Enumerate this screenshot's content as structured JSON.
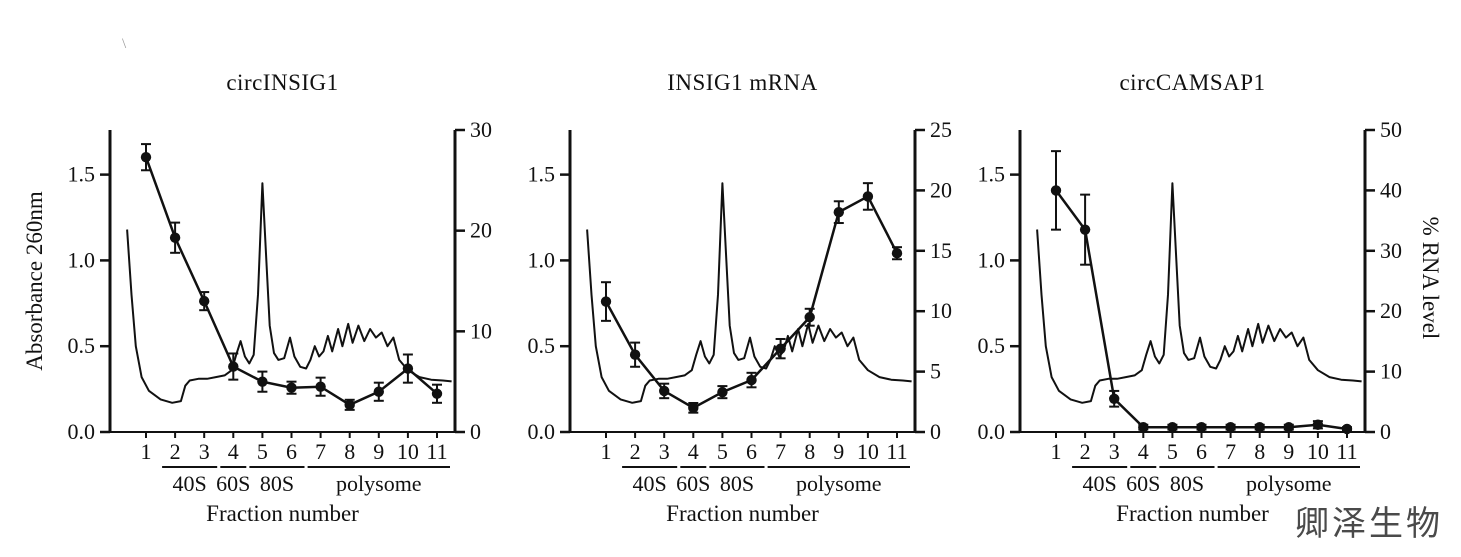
{
  "figure": {
    "stray_mark": "\\"
  },
  "watermark": "卿泽生物",
  "chart_shared": {
    "xlabel": "Fraction number",
    "ylabel_left": "Absorbance 260nm",
    "ylabel_right": "% RNA level",
    "left_axis": {
      "lim": [
        0,
        1.76
      ],
      "tick_values": [
        0,
        0.5,
        1.0,
        1.5
      ],
      "tick_labels": [
        "0.0",
        "0.5",
        "1.0",
        "1.5"
      ]
    },
    "fraction_groups": [
      {
        "label": "40S",
        "from": 2,
        "to": 3
      },
      {
        "label": "60S",
        "from": 4,
        "to": 4
      },
      {
        "label": "80S",
        "from": 5,
        "to": 6
      },
      {
        "label": "polysome",
        "from": 7,
        "to": 11
      }
    ],
    "absorbance_trace": {
      "x": [
        0.35,
        0.5,
        0.65,
        0.85,
        1.1,
        1.5,
        1.9,
        2.2,
        2.35,
        2.5,
        2.8,
        3.1,
        3.4,
        3.7,
        3.95,
        4.1,
        4.25,
        4.4,
        4.55,
        4.7,
        4.85,
        5.0,
        5.12,
        5.25,
        5.4,
        5.55,
        5.75,
        5.95,
        6.1,
        6.3,
        6.5,
        6.65,
        6.8,
        6.95,
        7.1,
        7.25,
        7.4,
        7.6,
        7.75,
        7.95,
        8.1,
        8.3,
        8.5,
        8.7,
        8.9,
        9.1,
        9.3,
        9.5,
        9.7,
        10.0,
        10.4,
        10.8,
        11.2,
        11.5
      ],
      "y": [
        1.18,
        0.8,
        0.5,
        0.32,
        0.24,
        0.19,
        0.17,
        0.18,
        0.27,
        0.3,
        0.31,
        0.31,
        0.32,
        0.33,
        0.36,
        0.45,
        0.53,
        0.44,
        0.4,
        0.45,
        0.8,
        1.45,
        1.05,
        0.62,
        0.46,
        0.42,
        0.43,
        0.55,
        0.44,
        0.38,
        0.37,
        0.42,
        0.5,
        0.44,
        0.47,
        0.56,
        0.47,
        0.6,
        0.5,
        0.63,
        0.52,
        0.62,
        0.53,
        0.6,
        0.55,
        0.58,
        0.5,
        0.55,
        0.42,
        0.36,
        0.32,
        0.305,
        0.3,
        0.295
      ]
    }
  },
  "chart_data": [
    {
      "type": "line",
      "title": "circINSIG1",
      "xlabel": "Fraction number",
      "ylabel_left": "Absorbance 260nm",
      "ylabel_right": "% RNA level",
      "x": [
        1,
        2,
        3,
        4,
        5,
        6,
        7,
        8,
        9,
        10,
        11
      ],
      "rna_percent": [
        27.3,
        19.3,
        13.0,
        6.5,
        5.0,
        4.4,
        4.5,
        2.7,
        4.0,
        6.3,
        3.8
      ],
      "rna_err": [
        1.3,
        1.5,
        0.9,
        1.3,
        1.0,
        0.6,
        0.9,
        0.5,
        0.9,
        1.4,
        0.9
      ],
      "right_axis": {
        "lim": [
          0,
          30
        ],
        "ticks": [
          0,
          10,
          20,
          30
        ]
      }
    },
    {
      "type": "line",
      "title": "INSIG1 mRNA",
      "xlabel": "Fraction number",
      "ylabel_left": "Absorbance 260nm",
      "ylabel_right": "% RNA level",
      "x": [
        1,
        2,
        3,
        4,
        5,
        6,
        7,
        8,
        9,
        10,
        11
      ],
      "rna_percent": [
        10.8,
        6.4,
        3.4,
        2.0,
        3.3,
        4.3,
        6.9,
        9.5,
        18.2,
        19.5,
        14.8
      ],
      "rna_err": [
        1.6,
        1.0,
        0.6,
        0.4,
        0.5,
        0.6,
        0.8,
        0.7,
        0.9,
        1.1,
        0.5
      ],
      "right_axis": {
        "lim": [
          0,
          25
        ],
        "ticks": [
          0,
          5,
          10,
          15,
          20,
          25
        ]
      }
    },
    {
      "type": "line",
      "title": "circCAMSAP1",
      "xlabel": "Fraction number",
      "ylabel_left": "Absorbance 260nm",
      "ylabel_right": "% RNA level",
      "x": [
        1,
        2,
        3,
        4,
        5,
        6,
        7,
        8,
        9,
        10,
        11
      ],
      "rna_percent": [
        40.0,
        33.5,
        5.5,
        0.8,
        0.8,
        0.8,
        0.8,
        0.8,
        0.8,
        1.2,
        0.5
      ],
      "rna_err": [
        6.5,
        5.8,
        1.3,
        0.4,
        0.4,
        0.4,
        0.4,
        0.4,
        0.4,
        0.6,
        0.3
      ],
      "right_axis": {
        "lim": [
          0,
          50
        ],
        "ticks": [
          0,
          10,
          20,
          30,
          40,
          50
        ]
      }
    }
  ]
}
